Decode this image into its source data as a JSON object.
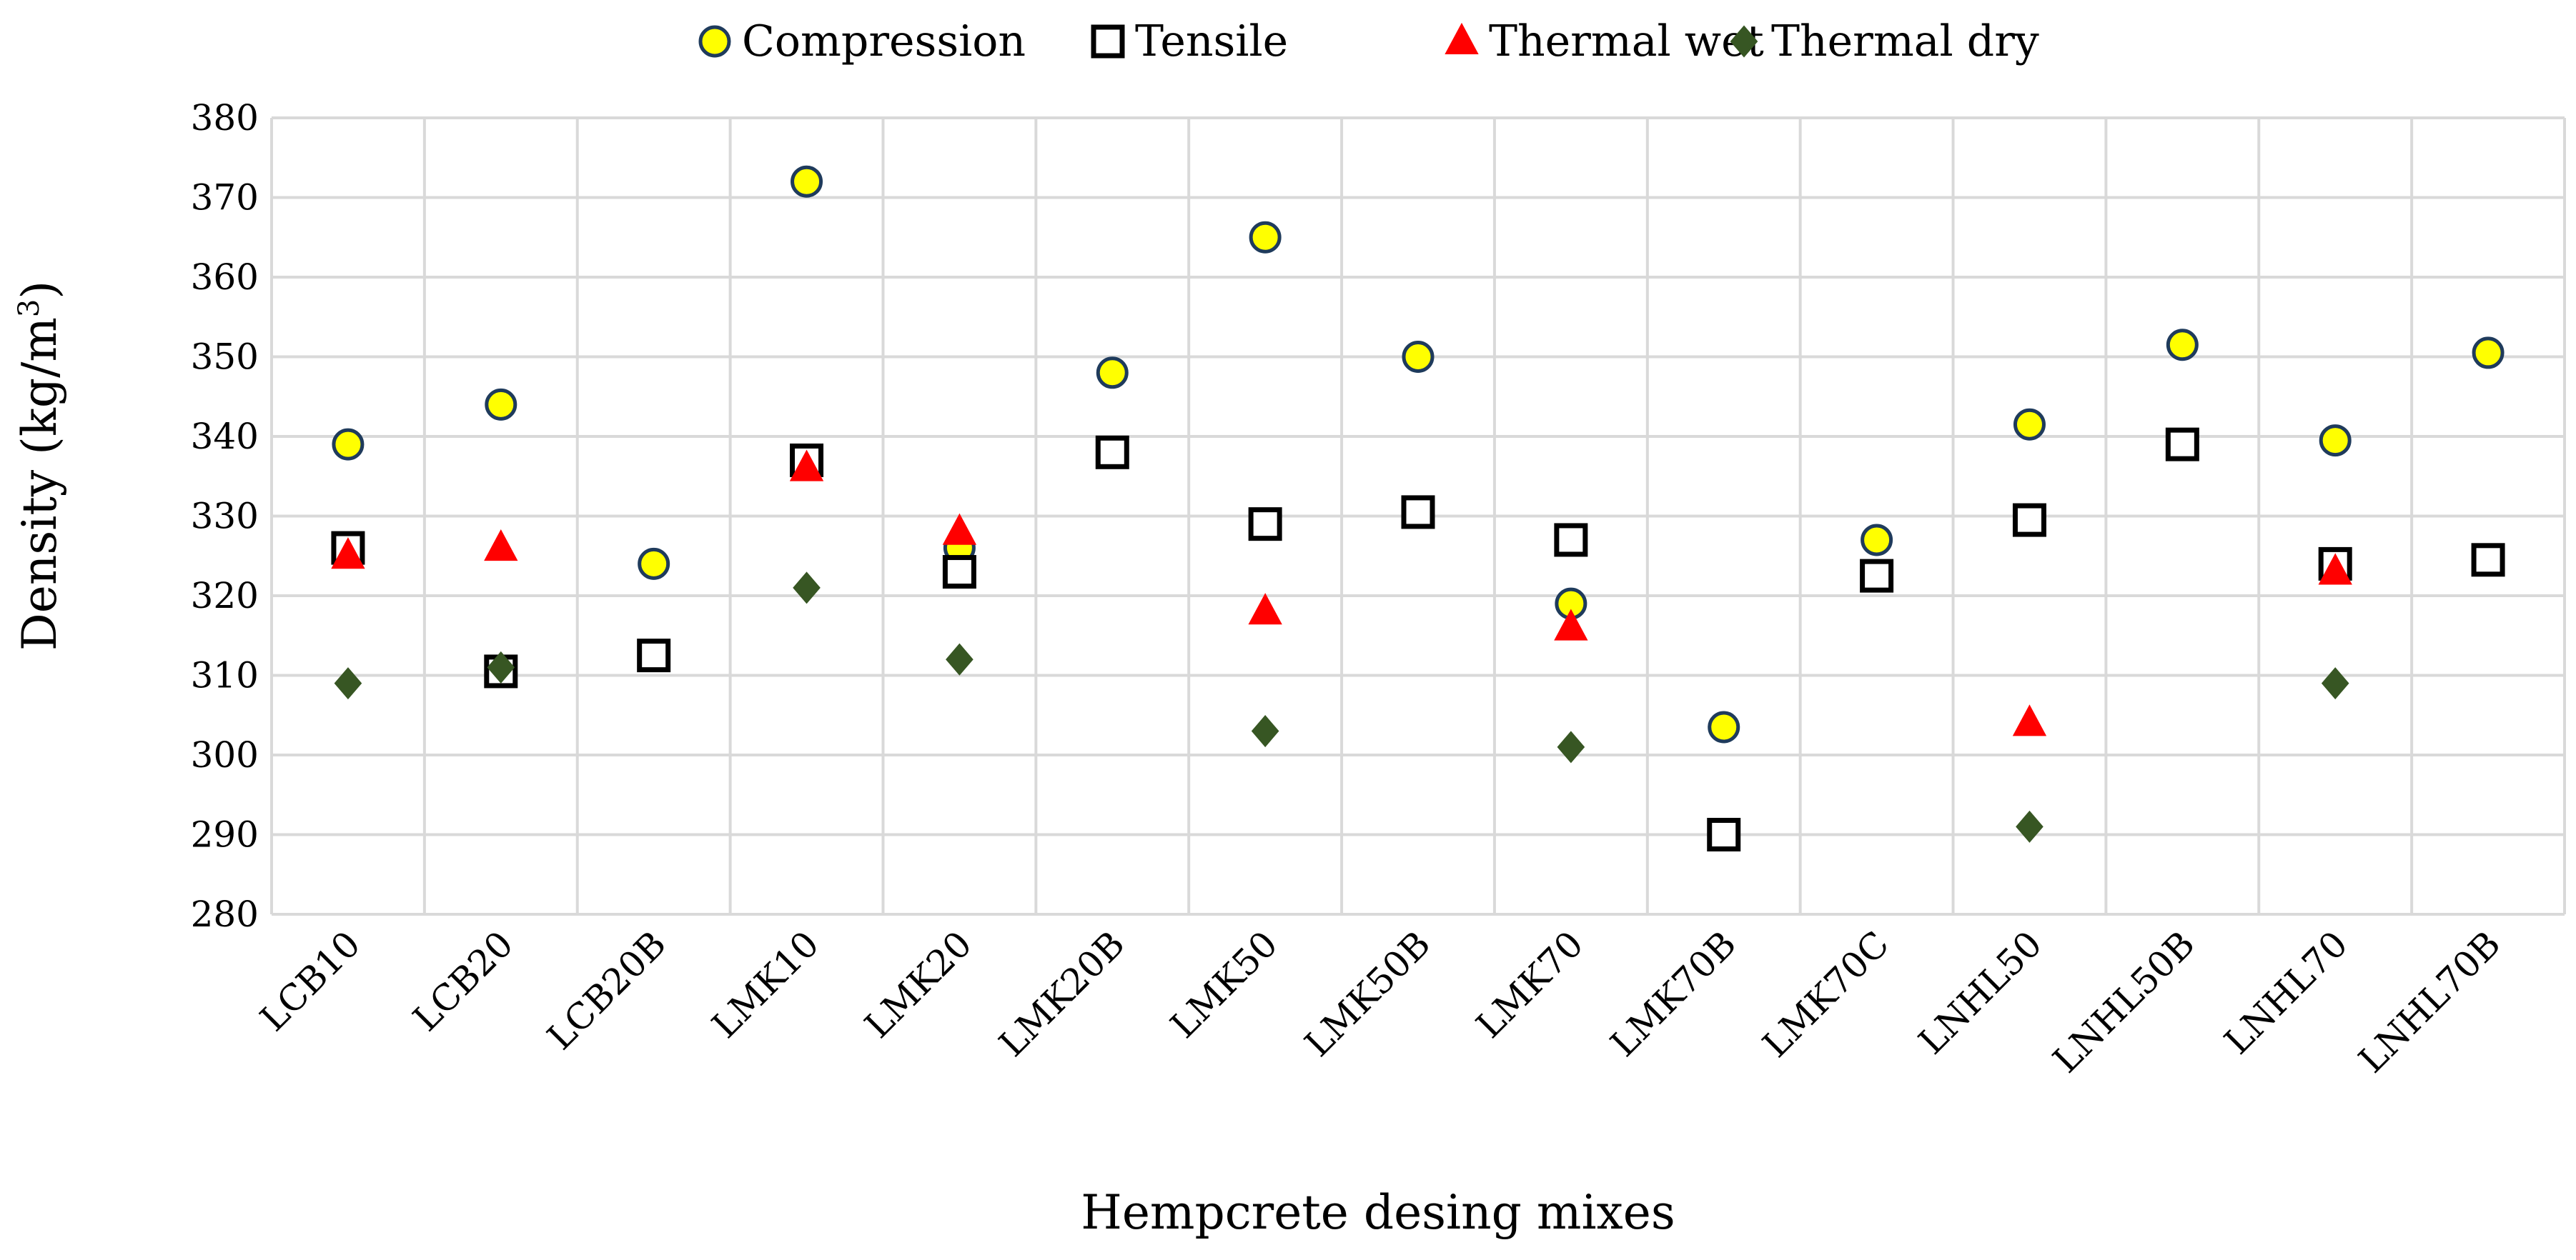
{
  "chart_data": {
    "type": "scatter",
    "categories": [
      "LCB10",
      "LCB20",
      "LCB20B",
      "LMK10",
      "LMK20",
      "LMK20B",
      "LMK50",
      "LMK50B",
      "LMK70",
      "LMK70B",
      "LMK70C",
      "LNHL50",
      "LNHL50B",
      "LNHL70",
      "LNHL70B"
    ],
    "xlabel": "Hempcrete desing mixes",
    "ylabel_main": "Density (kg/m",
    "ylabel_sup": "3",
    "ylabel_end": ")",
    "ylim": [
      280,
      380
    ],
    "yticks": [
      280,
      290,
      300,
      310,
      320,
      330,
      340,
      350,
      360,
      370,
      380
    ],
    "grid": true,
    "legend_position": "top",
    "series": [
      {
        "name": "Compression",
        "marker": "circle",
        "fill": "#FFFF00",
        "stroke": "#1F3B5C",
        "values": [
          339,
          344,
          324,
          372,
          326,
          348,
          365,
          350,
          319,
          303.5,
          327,
          341.5,
          351.5,
          339.5,
          350.5
        ]
      },
      {
        "name": "Tensile",
        "marker": "square",
        "fill": "#FFFFFF",
        "stroke": "#000000",
        "values": [
          326,
          310.5,
          312.5,
          337,
          323,
          338,
          329,
          330.5,
          327,
          290,
          322.5,
          329.5,
          339,
          324,
          324.5
        ]
      },
      {
        "name": "Thermal wet",
        "marker": "triangle",
        "fill": "#FF0000",
        "stroke": "#FF0000",
        "values": [
          325,
          326,
          null,
          336,
          328,
          null,
          318,
          null,
          316,
          null,
          null,
          304,
          null,
          323,
          null
        ]
      },
      {
        "name": "Thermal dry",
        "marker": "diamond",
        "fill": "#375623",
        "stroke": "#375623",
        "values": [
          309,
          311,
          null,
          321,
          312,
          null,
          303,
          null,
          301,
          null,
          null,
          291,
          null,
          309,
          null
        ]
      }
    ]
  }
}
